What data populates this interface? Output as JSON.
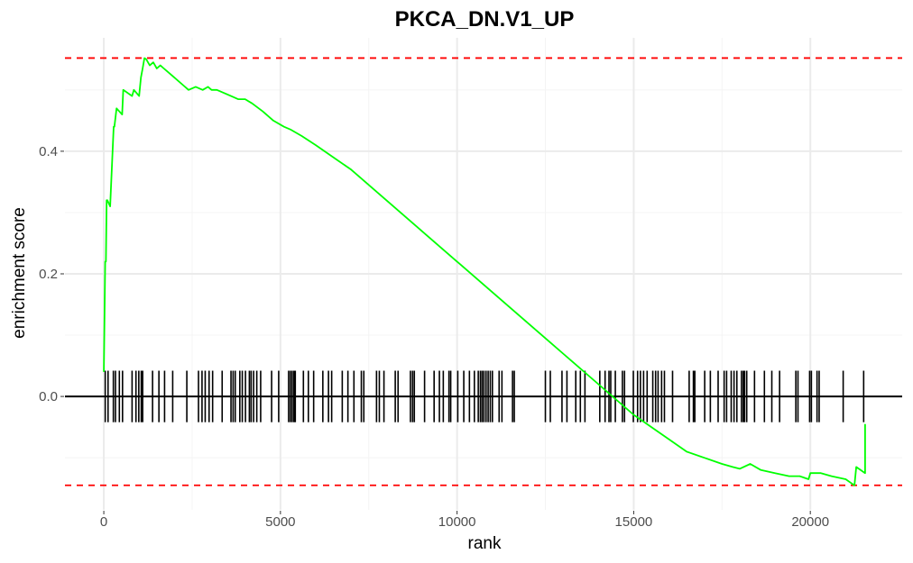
{
  "chart_data": {
    "type": "line",
    "title": "PKCA_DN.V1_UP",
    "xlabel": "rank",
    "ylabel": "enrichment score",
    "xlim": [
      -1100,
      22600
    ],
    "ylim": [
      -0.185,
      0.585
    ],
    "x_ticks": [
      0,
      5000,
      10000,
      15000,
      20000
    ],
    "x_tick_labels": [
      "0",
      "5000",
      "10000",
      "15000",
      "20000"
    ],
    "y_ticks": [
      0.0,
      0.2,
      0.4
    ],
    "y_tick_labels": [
      "0.0",
      "0.2",
      "0.4"
    ],
    "grid": true,
    "colors": {
      "curve": "#00ff00",
      "threshold": "#ff0000",
      "zero_line": "#000000",
      "hits": "#000000",
      "grid": "#ebebeb"
    },
    "max_es": 0.552,
    "min_es": -0.145,
    "running_es": {
      "x": [
        0,
        40,
        60,
        80,
        100,
        180,
        280,
        300,
        360,
        520,
        550,
        800,
        850,
        1000,
        1050,
        1100,
        1150,
        1200,
        1300,
        1400,
        1500,
        1600,
        1700,
        1800,
        2000,
        2200,
        2400,
        2600,
        2800,
        2950,
        3050,
        3200,
        3400,
        3600,
        3800,
        4000,
        4200,
        4500,
        4800,
        5100,
        5300,
        5600,
        6000,
        6500,
        7000,
        8000,
        9000,
        10000,
        11000,
        12000,
        13000,
        14000,
        15000,
        16000,
        16500,
        17000,
        17500,
        17800,
        18000,
        18300,
        18600,
        19000,
        19400,
        19700,
        19950,
        20000,
        20300,
        20600,
        21000,
        21250,
        21300,
        21550,
        21550
      ],
      "y": [
        0.04,
        0.22,
        0.22,
        0.32,
        0.32,
        0.31,
        0.44,
        0.44,
        0.47,
        0.46,
        0.5,
        0.49,
        0.5,
        0.49,
        0.52,
        0.535,
        0.552,
        0.55,
        0.54,
        0.545,
        0.535,
        0.54,
        0.535,
        0.53,
        0.52,
        0.51,
        0.5,
        0.505,
        0.5,
        0.505,
        0.5,
        0.5,
        0.495,
        0.49,
        0.485,
        0.485,
        0.478,
        0.465,
        0.45,
        0.44,
        0.435,
        0.425,
        0.41,
        0.39,
        0.37,
        0.32,
        0.27,
        0.22,
        0.17,
        0.12,
        0.07,
        0.02,
        -0.03,
        -0.07,
        -0.09,
        -0.1,
        -0.11,
        -0.115,
        -0.118,
        -0.11,
        -0.12,
        -0.125,
        -0.13,
        -0.13,
        -0.135,
        -0.125,
        -0.125,
        -0.13,
        -0.135,
        -0.145,
        -0.115,
        -0.125,
        -0.045
      ]
    },
    "hits": [
      40,
      120,
      270,
      330,
      440,
      530,
      800,
      910,
      990,
      1060,
      1100,
      1380,
      1560,
      1720,
      1950,
      2350,
      2680,
      2780,
      2870,
      2980,
      3080,
      3350,
      3600,
      3660,
      3720,
      3850,
      3920,
      4010,
      4120,
      4170,
      4240,
      4330,
      4440,
      4750,
      4950,
      5230,
      5280,
      5330,
      5380,
      5420,
      5650,
      5790,
      5940,
      6200,
      6360,
      6450,
      6750,
      6910,
      7080,
      7290,
      7360,
      7720,
      7800,
      7930,
      8250,
      8330,
      8680,
      8740,
      8790,
      9080,
      9350,
      9500,
      9610,
      9770,
      9820,
      10020,
      10190,
      10350,
      10490,
      10600,
      10660,
      10710,
      10760,
      10820,
      10880,
      10940,
      11000,
      11190,
      11270,
      11570,
      11620,
      12500,
      12640,
      12970,
      13110,
      13360,
      13490,
      13620,
      14040,
      14190,
      14300,
      14350,
      14480,
      14680,
      14740,
      14990,
      15110,
      15190,
      15280,
      15380,
      15540,
      15620,
      15690,
      15790,
      15870,
      16100,
      16570,
      16690,
      16730,
      17010,
      17170,
      17390,
      17560,
      17630,
      17760,
      17840,
      17920,
      18050,
      18100,
      18140,
      18200,
      18420,
      18700,
      18910,
      19130,
      19590,
      19650,
      19980,
      20030,
      20190,
      20250,
      20930,
      21510
    ]
  }
}
